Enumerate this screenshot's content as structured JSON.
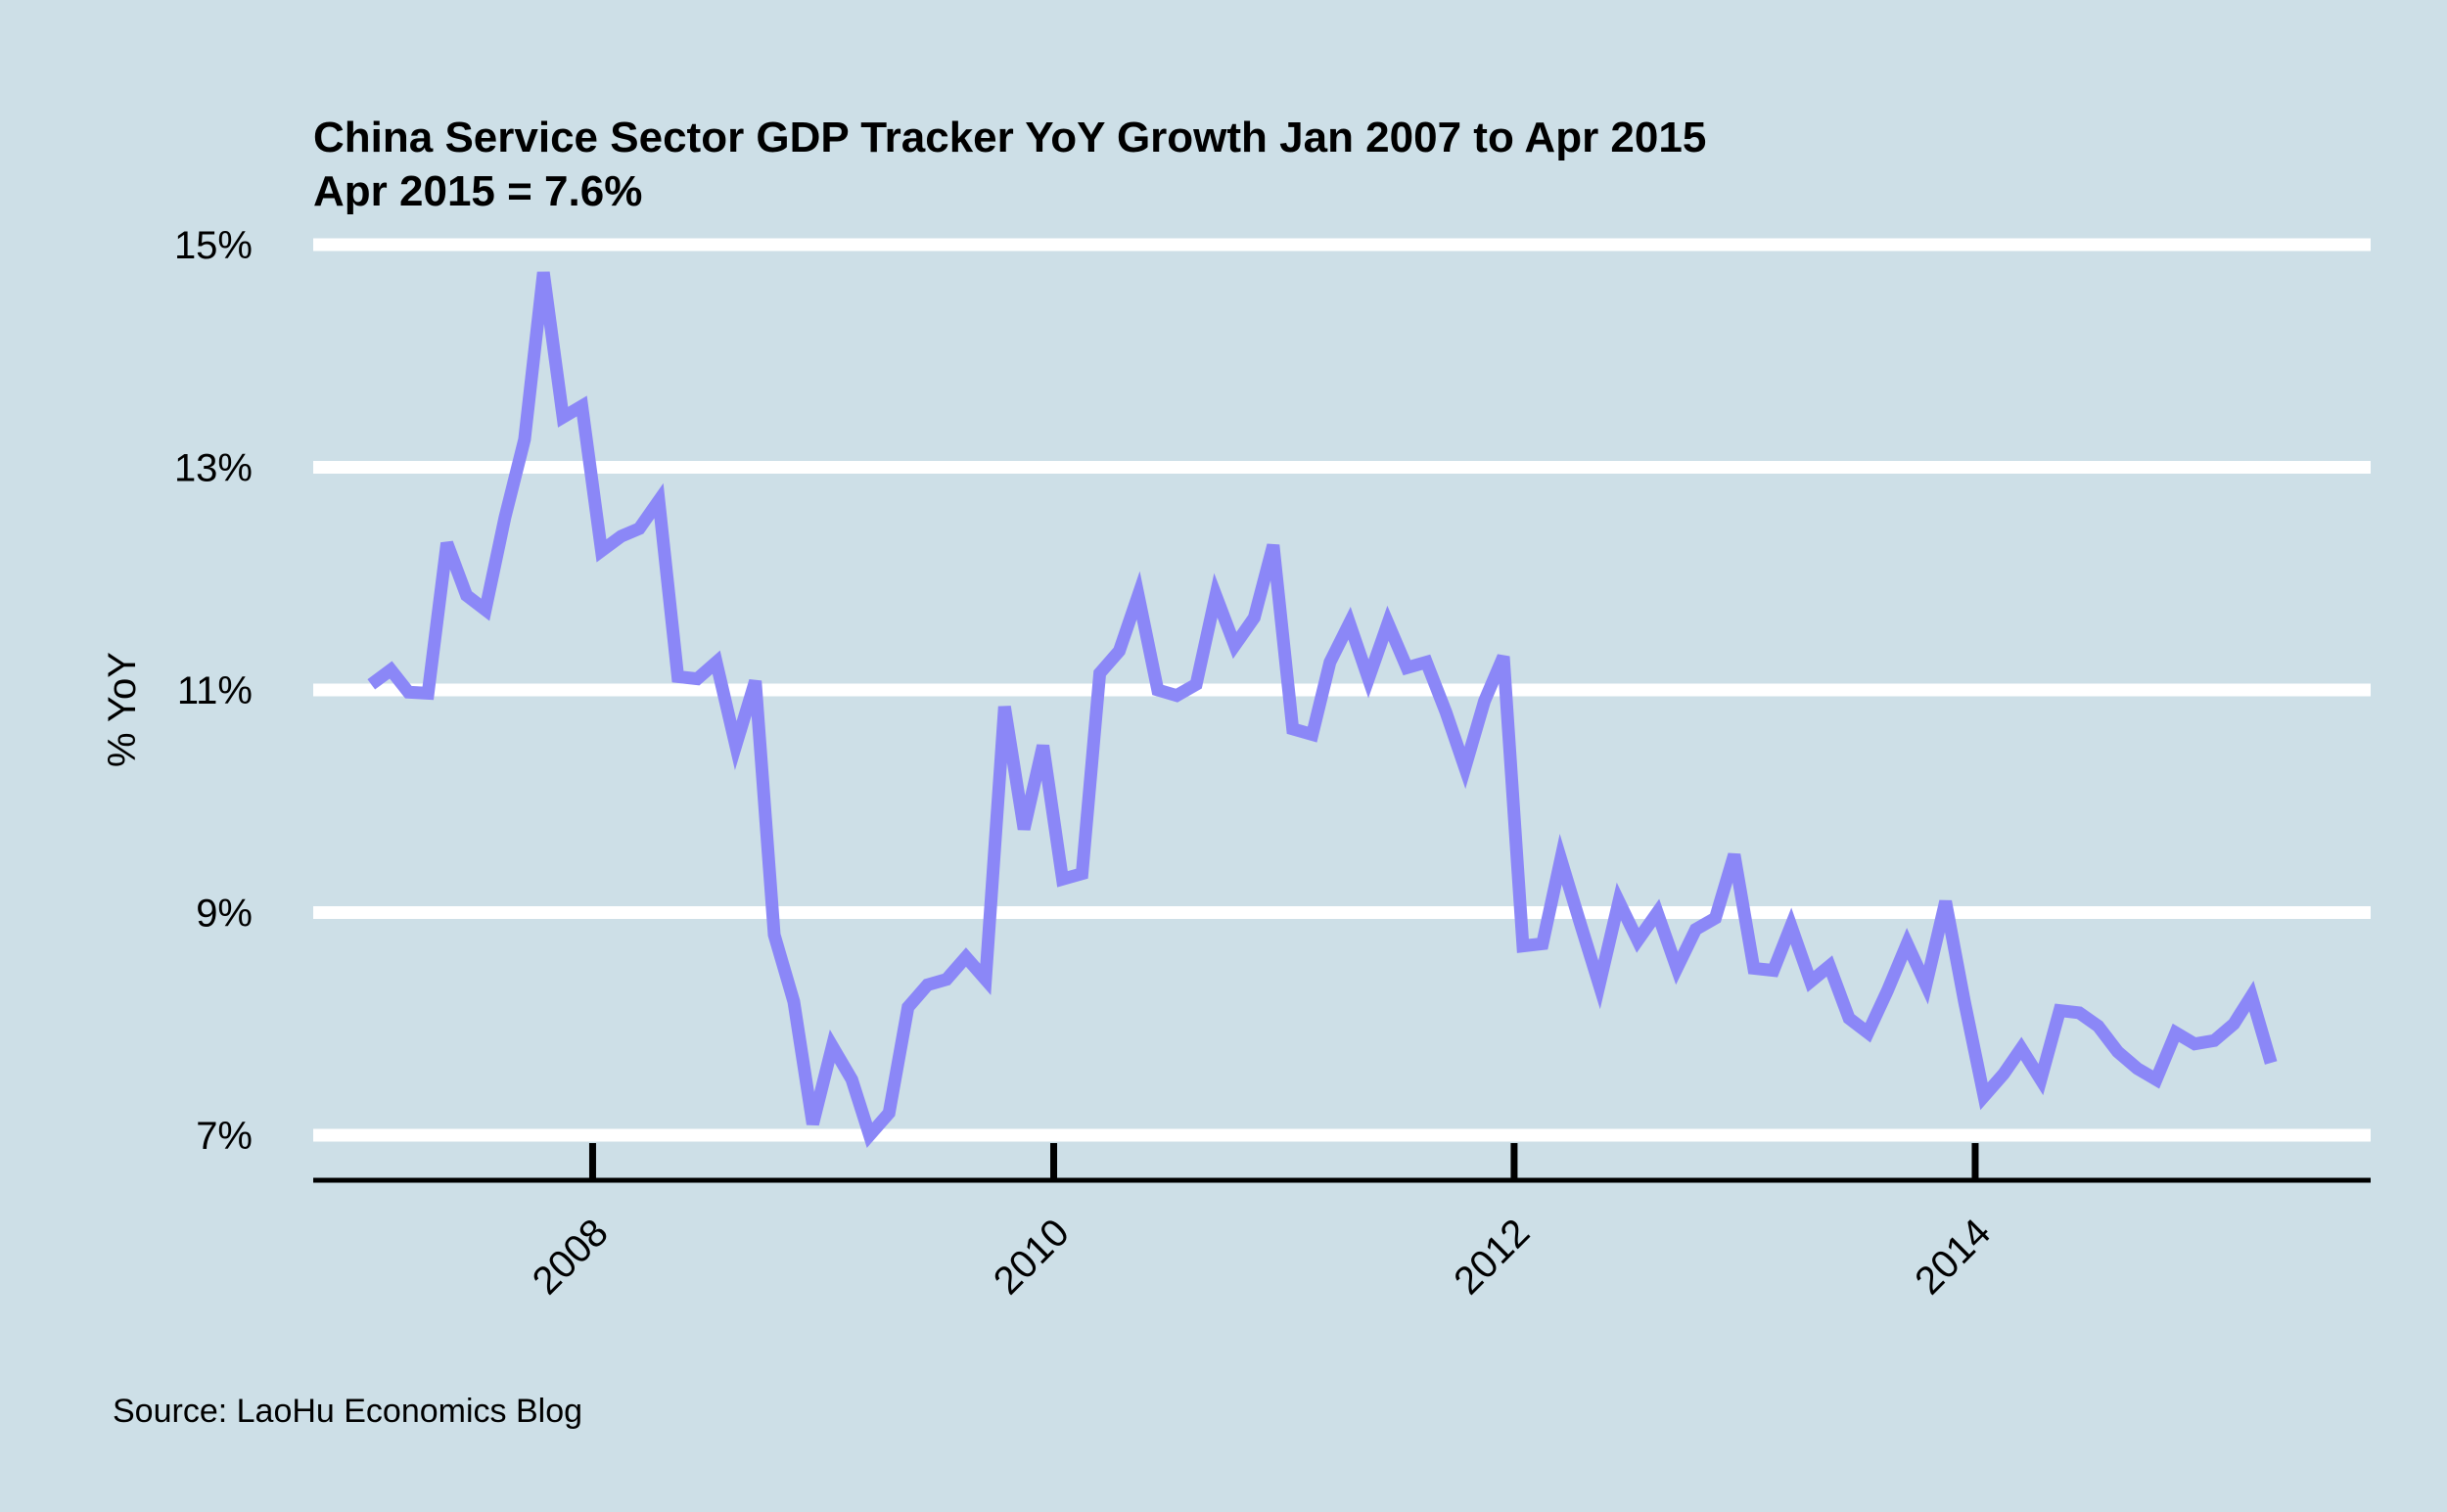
{
  "chart_data": {
    "type": "line",
    "title": "China Service Sector GDP Tracker YoY Growth Jan 2007 to Apr 2015",
    "subtitle": "Apr 2015 = 7.6%",
    "ylabel": "% YoY",
    "xlabel": "",
    "caption": "Source: LaoHu Economics Blog",
    "ylim": [
      7,
      15
    ],
    "yticks": [
      7,
      9,
      11,
      13,
      15
    ],
    "ytick_labels": [
      "7%",
      "9%",
      "11%",
      "13%",
      "15%"
    ],
    "xlim": [
      "2006-10-15",
      "2015-09-20"
    ],
    "xticks": [
      "2008-01-01",
      "2010-01-01",
      "2012-01-01",
      "2014-01-01"
    ],
    "xtick_labels": [
      "2008",
      "2010",
      "2012",
      "2014"
    ],
    "grid": "horizontal",
    "line_color": "#8b87f7",
    "background_color": "#cddfe7",
    "series": [
      {
        "x": [
          "2007-01",
          "2007-02",
          "2007-03",
          "2007-04",
          "2007-05",
          "2007-06",
          "2007-07",
          "2007-08",
          "2007-09",
          "2007-10",
          "2007-11",
          "2007-12",
          "2008-01",
          "2008-02",
          "2008-03",
          "2008-04",
          "2008-05",
          "2008-06",
          "2008-07",
          "2008-08",
          "2008-09",
          "2008-10",
          "2008-11",
          "2008-12",
          "2009-01",
          "2009-02",
          "2009-03",
          "2009-04",
          "2009-05",
          "2009-06",
          "2009-07",
          "2009-08",
          "2009-09",
          "2009-10",
          "2009-11",
          "2009-12",
          "2010-01",
          "2010-02",
          "2010-03",
          "2010-04",
          "2010-05",
          "2010-06",
          "2010-07",
          "2010-08",
          "2010-09",
          "2010-10",
          "2010-11",
          "2010-12",
          "2011-01",
          "2011-02",
          "2011-03",
          "2011-04",
          "2011-05",
          "2011-06",
          "2011-07",
          "2011-08",
          "2011-09",
          "2011-10",
          "2011-11",
          "2011-12",
          "2012-01",
          "2012-02",
          "2012-03",
          "2012-04",
          "2012-05",
          "2012-06",
          "2012-07",
          "2012-08",
          "2012-09",
          "2012-10",
          "2012-11",
          "2012-12",
          "2013-01",
          "2013-02",
          "2013-03",
          "2013-04",
          "2013-05",
          "2013-06",
          "2013-07",
          "2013-08",
          "2013-09",
          "2013-10",
          "2013-11",
          "2013-12",
          "2014-01",
          "2014-02",
          "2014-03",
          "2014-04",
          "2014-05",
          "2014-06",
          "2014-07",
          "2014-08",
          "2014-09",
          "2014-10",
          "2014-11",
          "2014-12",
          "2015-01",
          "2015-02",
          "2015-03",
          "2015-04"
        ],
        "y": [
          11.05,
          11.18,
          10.98,
          10.97,
          12.32,
          11.85,
          11.72,
          12.55,
          13.25,
          14.75,
          13.45,
          13.55,
          12.25,
          12.38,
          12.45,
          12.7,
          11.12,
          11.1,
          11.25,
          10.5,
          11.08,
          8.8,
          8.2,
          7.1,
          7.8,
          7.5,
          7.0,
          7.2,
          8.15,
          8.35,
          8.4,
          8.6,
          8.4,
          10.85,
          9.75,
          10.5,
          9.3,
          9.35,
          11.15,
          11.35,
          11.85,
          11.0,
          10.95,
          11.05,
          11.85,
          11.4,
          11.65,
          12.3,
          10.65,
          10.6,
          11.25,
          11.6,
          11.1,
          11.6,
          11.2,
          11.25,
          10.8,
          10.3,
          10.9,
          11.3,
          8.7,
          8.72,
          9.48,
          8.9,
          8.35,
          9.1,
          8.75,
          9.0,
          8.5,
          8.85,
          8.95,
          9.52,
          8.5,
          8.48,
          8.88,
          8.38,
          8.52,
          8.05,
          7.92,
          8.3,
          8.72,
          8.35,
          9.1,
          8.2,
          7.35,
          7.55,
          7.78,
          7.5,
          8.12,
          8.1,
          7.98,
          7.75,
          7.6,
          7.5,
          7.92,
          7.82,
          7.85,
          8.0,
          8.25,
          7.65
        ]
      }
    ]
  }
}
